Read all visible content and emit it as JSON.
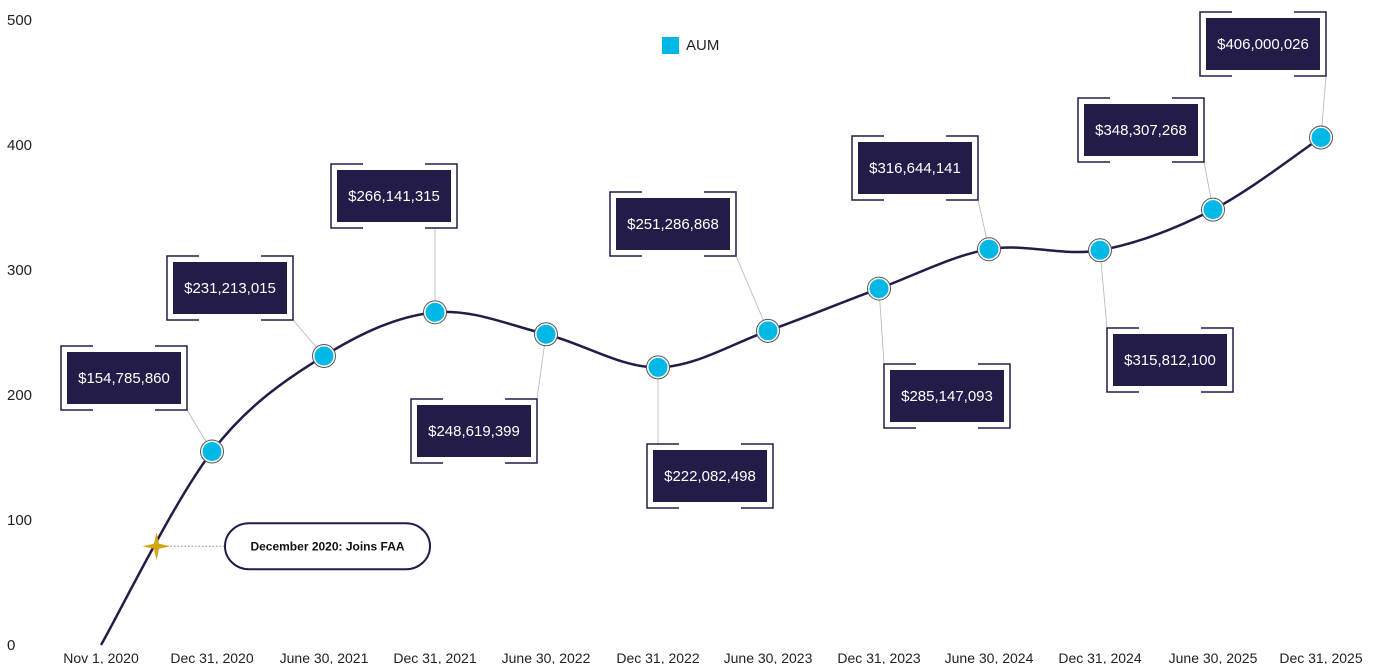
{
  "chart_data": {
    "type": "line",
    "x": [
      "Nov 1, 2020",
      "Dec 31, 2020",
      "June 30, 2021",
      "Dec 31, 2021",
      "June 30, 2022",
      "Dec 31, 2022",
      "June 30, 2023",
      "Dec 31, 2023",
      "June 30, 2024",
      "Dec 31, 2024",
      "June 30, 2025",
      "Dec 31, 2025"
    ],
    "series": [
      {
        "name": "AUM",
        "values": [
          0,
          154.78586,
          231.213015,
          266.141315,
          248.619399,
          222.082498,
          251.286868,
          285.147093,
          316.644141,
          315.8121,
          348.307268,
          406.000026
        ],
        "labels": [
          "",
          "$154,785,860",
          "$231,213,015",
          "$266,141,315",
          "$248,619,399",
          "$222,082,498",
          "$251,286,868",
          "$285,147,093",
          "$316,644,141",
          "$315,812,100",
          "$348,307,268",
          "$406,000,026"
        ]
      }
    ],
    "yticks": [
      "0",
      "100",
      "200",
      "300",
      "400",
      "500"
    ],
    "ylim": [
      0,
      500
    ],
    "legend": "top-center",
    "grid": false,
    "annotation": {
      "text": "December 2020: Joins FAA",
      "x_position": 0.5,
      "y": 79
    },
    "colors": {
      "line": "#231c48",
      "marker": "#00b8e6",
      "label_bg": "#231c48",
      "star": "#d4a50f"
    }
  }
}
